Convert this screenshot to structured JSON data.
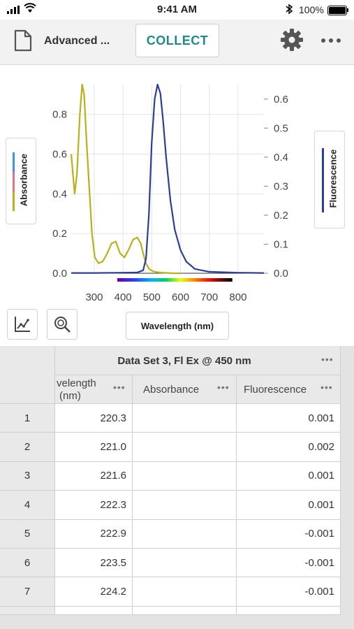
{
  "status_bar": {
    "time": "9:41 AM",
    "battery": "100%",
    "signal_icon": "signal-bars-icon",
    "wifi_icon": "wifi-icon",
    "bluetooth_icon": "bluetooth-icon"
  },
  "toolbar": {
    "title": "Advanced ...",
    "collect_label": "COLLECT",
    "accent": "#1f8a8a"
  },
  "graph": {
    "x_axis_button_label": "Wavelength (nm)"
  },
  "chart_data": {
    "type": "line",
    "xlabel": "Wavelength (nm)",
    "xlim": [
      220,
      890
    ],
    "x_ticks": [
      "300",
      "400",
      "500",
      "600",
      "700",
      "800"
    ],
    "y_left": {
      "label": "Absorbance",
      "lim": [
        0,
        0.95
      ],
      "ticks": [
        "0.0",
        "0.2",
        "0.4",
        "0.6",
        "0.8"
      ]
    },
    "y_right": {
      "label": "Fluorescence",
      "lim": [
        0,
        0.65
      ],
      "ticks": [
        "0.0",
        "0.1",
        "0.2",
        "0.3",
        "0.4",
        "0.5",
        "0.6"
      ]
    },
    "series": [
      {
        "name": "Absorbance",
        "axis": "left",
        "color": "#b8b21a",
        "x": [
          220,
          232,
          240,
          250,
          258,
          265,
          272,
          282,
          292,
          302,
          315,
          330,
          345,
          360,
          375,
          390,
          405,
          420,
          435,
          450,
          462,
          470,
          480,
          492,
          505,
          520,
          535,
          550,
          570,
          600
        ],
        "y": [
          0.6,
          0.4,
          0.5,
          0.8,
          0.95,
          0.9,
          0.7,
          0.45,
          0.2,
          0.08,
          0.05,
          0.06,
          0.1,
          0.15,
          0.16,
          0.1,
          0.08,
          0.12,
          0.17,
          0.18,
          0.15,
          0.1,
          0.05,
          0.02,
          0.01,
          0.005,
          0.003,
          0.002,
          0.0,
          0.0
        ]
      },
      {
        "name": "Fluorescence",
        "axis": "right",
        "color": "#2a3f9a",
        "x": [
          220,
          300,
          400,
          450,
          470,
          480,
          490,
          500,
          510,
          520,
          530,
          540,
          550,
          565,
          580,
          600,
          620,
          650,
          700,
          800,
          890
        ],
        "y": [
          0.001,
          0.001,
          0.002,
          0.003,
          0.01,
          0.05,
          0.2,
          0.45,
          0.6,
          0.65,
          0.62,
          0.52,
          0.4,
          0.25,
          0.15,
          0.08,
          0.04,
          0.015,
          0.005,
          0.002,
          0.001
        ]
      }
    ],
    "spectrum_bar": {
      "x_start": 380,
      "x_end": 780
    }
  },
  "table": {
    "dataset_title": "Data Set 3, Fl Ex @ 450 nm",
    "columns": [
      {
        "label": "velength",
        "label2": "(nm)"
      },
      {
        "label": "Absorbance"
      },
      {
        "label": "Fluorescence"
      }
    ],
    "rows": [
      {
        "n": "1",
        "wavelength": "220.3",
        "absorbance": "",
        "fluorescence": "0.001"
      },
      {
        "n": "2",
        "wavelength": "221.0",
        "absorbance": "",
        "fluorescence": "0.002"
      },
      {
        "n": "3",
        "wavelength": "221.6",
        "absorbance": "",
        "fluorescence": "0.001"
      },
      {
        "n": "4",
        "wavelength": "222.3",
        "absorbance": "",
        "fluorescence": "0.001"
      },
      {
        "n": "5",
        "wavelength": "222.9",
        "absorbance": "",
        "fluorescence": "-0.001"
      },
      {
        "n": "6",
        "wavelength": "223.5",
        "absorbance": "",
        "fluorescence": "-0.001"
      },
      {
        "n": "7",
        "wavelength": "224.2",
        "absorbance": "",
        "fluorescence": "-0.001"
      }
    ]
  }
}
